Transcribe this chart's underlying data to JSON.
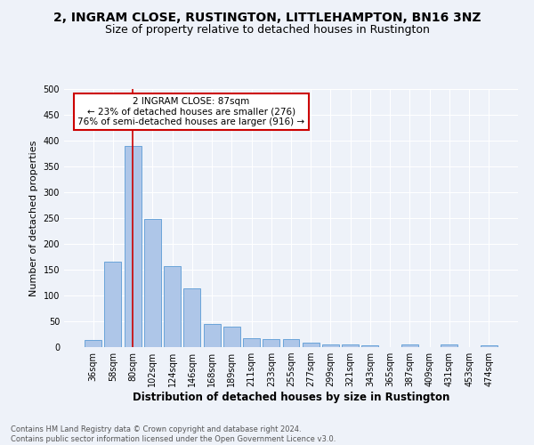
{
  "title": "2, INGRAM CLOSE, RUSTINGTON, LITTLEHAMPTON, BN16 3NZ",
  "subtitle": "Size of property relative to detached houses in Rustington",
  "xlabel": "Distribution of detached houses by size in Rustington",
  "ylabel": "Number of detached properties",
  "categories": [
    "36sqm",
    "58sqm",
    "80sqm",
    "102sqm",
    "124sqm",
    "146sqm",
    "168sqm",
    "189sqm",
    "211sqm",
    "233sqm",
    "255sqm",
    "277sqm",
    "299sqm",
    "321sqm",
    "343sqm",
    "365sqm",
    "387sqm",
    "409sqm",
    "431sqm",
    "453sqm",
    "474sqm"
  ],
  "values": [
    13,
    165,
    390,
    248,
    157,
    113,
    44,
    40,
    18,
    15,
    15,
    9,
    6,
    5,
    3,
    0,
    6,
    0,
    5,
    0,
    4
  ],
  "bar_color": "#aec6e8",
  "bar_edge_color": "#5b9bd5",
  "red_line_index": 2,
  "annotation_text_line1": "2 INGRAM CLOSE: 87sqm",
  "annotation_text_line2": "← 23% of detached houses are smaller (276)",
  "annotation_text_line3": "76% of semi-detached houses are larger (916) →",
  "annotation_box_color": "#ffffff",
  "annotation_box_edge": "#cc0000",
  "red_line_color": "#cc0000",
  "background_color": "#eef2f9",
  "grid_color": "#ffffff",
  "footer_line1": "Contains HM Land Registry data © Crown copyright and database right 2024.",
  "footer_line2": "Contains public sector information licensed under the Open Government Licence v3.0.",
  "ylim": [
    0,
    500
  ],
  "yticks": [
    0,
    50,
    100,
    150,
    200,
    250,
    300,
    350,
    400,
    450,
    500
  ],
  "title_fontsize": 10,
  "subtitle_fontsize": 9,
  "ylabel_fontsize": 8,
  "xlabel_fontsize": 8.5,
  "tick_fontsize": 7,
  "footer_fontsize": 6,
  "annot_fontsize": 7.5
}
